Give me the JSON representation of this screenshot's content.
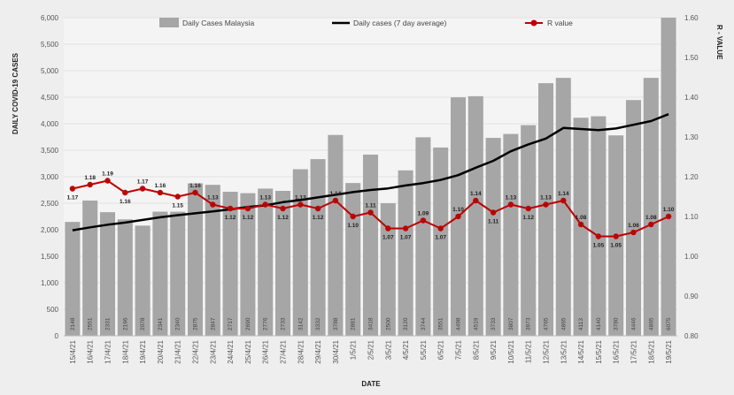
{
  "chart_data": {
    "type": "bar",
    "title": "",
    "xlabel": "DATE",
    "ylabel": "DAILY COVID-19 CASES",
    "y2label": "R - VALUE",
    "ylim": [
      0,
      6000
    ],
    "y2lim": [
      0.8,
      1.6
    ],
    "yticks": [
      "0",
      "500",
      "1,000",
      "1,500",
      "2,000",
      "2,500",
      "3,000",
      "3,500",
      "4,000",
      "4,500",
      "5,000",
      "5,500",
      "6,000"
    ],
    "y2ticks": [
      "0.80",
      "0.90",
      "1.00",
      "1.10",
      "1.20",
      "1.30",
      "1.40",
      "1.50",
      "1.60"
    ],
    "categories": [
      "15/4/21",
      "16/4/21",
      "17/4/21",
      "18/4/21",
      "19/4/21",
      "20/4/21",
      "21/4/21",
      "22/4/21",
      "23/4/21",
      "24/4/21",
      "25/4/21",
      "26/4/21",
      "27/4/21",
      "28/4/21",
      "29/4/21",
      "30/4/21",
      "1/5/21",
      "2/5/21",
      "3/5/21",
      "4/5/21",
      "5/5/21",
      "6/5/21",
      "7/5/21",
      "8/5/21",
      "9/5/21",
      "10/5/21",
      "11/5/21",
      "12/5/21",
      "13/5/21",
      "14/5/21",
      "15/5/21",
      "16/5/21",
      "17/5/21",
      "18/5/21",
      "19/5/21"
    ],
    "legend": {
      "position": "top",
      "bars": "Daily Cases Malaysia",
      "avg": "Daily cases (7 day average)",
      "r": "R value"
    },
    "series": [
      {
        "name": "Daily Cases Malaysia",
        "kind": "bar",
        "color": "#a6a6a6",
        "values": [
          2148,
          2551,
          2331,
          2196,
          2078,
          2341,
          2340,
          2875,
          2847,
          2717,
          2690,
          2776,
          2733,
          3142,
          3332,
          3788,
          2881,
          3418,
          2500,
          3120,
          3744,
          3551,
          4498,
          4519,
          3733,
          3807,
          3973,
          4765,
          4865,
          4113,
          4140,
          3780,
          4446,
          4865,
          6075
        ],
        "labels": [
          "2148",
          "2551",
          "2331",
          "2196",
          "2078",
          "2341",
          "2340",
          "2875",
          "2847",
          "2717",
          "2690",
          "2776",
          "2733",
          "3142",
          "3332",
          "3788",
          "2881",
          "3418",
          "2500",
          "3120",
          "3744",
          "3551",
          "4498",
          "4519",
          "3733",
          "3807",
          "3973",
          "4765",
          "4865",
          "4113",
          "4140",
          "3780",
          "4446",
          "4865",
          "6075"
        ]
      },
      {
        "name": "Daily cases (7 day average)",
        "kind": "line",
        "color": "#000000",
        "values": [
          1990,
          2045,
          2095,
          2135,
          2185,
          2235,
          2275,
          2310,
          2345,
          2385,
          2430,
          2460,
          2520,
          2560,
          2610,
          2660,
          2710,
          2750,
          2780,
          2835,
          2880,
          2940,
          3030,
          3170,
          3300,
          3480,
          3610,
          3720,
          3920,
          3900,
          3880,
          3910,
          3980,
          4050,
          4180
        ]
      },
      {
        "name": "R value",
        "kind": "line",
        "axis": "right",
        "color": "#c00000",
        "values": [
          1.17,
          1.18,
          1.19,
          1.16,
          1.17,
          1.16,
          1.15,
          1.16,
          1.13,
          1.12,
          1.12,
          1.13,
          1.12,
          1.13,
          1.12,
          1.14,
          1.1,
          1.11,
          1.07,
          1.07,
          1.09,
          1.07,
          1.1,
          1.14,
          1.11,
          1.13,
          1.12,
          1.13,
          1.14,
          1.08,
          1.05,
          1.05,
          1.06,
          1.08,
          1.1
        ],
        "labels": [
          "1.17",
          "1.18",
          "1.19",
          "1.16",
          "1.17",
          "1.16",
          "1.15",
          "1.16",
          "1.13",
          "1.12",
          "1.12",
          "1.13",
          "1.12",
          "1.13",
          "1.12",
          "1.14",
          "1.10",
          "1.11",
          "1.07",
          "1.07",
          "1.09",
          "1.07",
          "1.10",
          "1.14",
          "1.11",
          "1.13",
          "1.12",
          "1.13",
          "1.14",
          "1.08",
          "1.05",
          "1.05",
          "1.06",
          "1.08",
          "1.10"
        ]
      }
    ]
  }
}
